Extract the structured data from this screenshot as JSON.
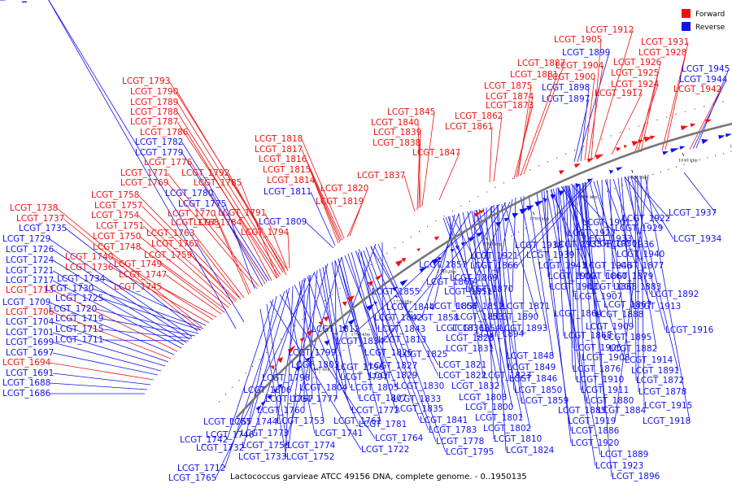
{
  "caption": "Lactococcus garvieae ATCC 49156 DNA, complete genome. - 0..1950135",
  "legend": [
    {
      "label": "Forward",
      "color": "#ee1111"
    },
    {
      "label": "Reverse",
      "color": "#1111ee"
    }
  ],
  "ticks": [
    "1680 kbp",
    "1700 kbp",
    "1720 kbp",
    "1740 kbp",
    "1760 kbp",
    "1780 kbp",
    "1800 kbp",
    "1820 kbp",
    "1840 kbp",
    "1860 kbp",
    "1880 kbp",
    "1900 kbp",
    "1920 kbp",
    "1940 kbp"
  ],
  "labels": [
    {
      "t": "LCGT_1793",
      "s": "f"
    },
    {
      "t": "LCGT_1790",
      "s": "f"
    },
    {
      "t": "LCGT_1789",
      "s": "f"
    },
    {
      "t": "LCGT_1788",
      "s": "f"
    },
    {
      "t": "LCGT_1787",
      "s": "f"
    },
    {
      "t": "LCGT_1786",
      "s": "f"
    },
    {
      "t": "LCGT_1782",
      "s": "r"
    },
    {
      "t": "LCGT_1779",
      "s": "r"
    },
    {
      "t": "LCGT_1776",
      "s": "f"
    },
    {
      "t": "LCGT_1771",
      "s": "f"
    },
    {
      "t": "LCGT_1792",
      "s": "f"
    },
    {
      "t": "LCGT_1769",
      "s": "f"
    },
    {
      "t": "LCGT_1785",
      "s": "f"
    },
    {
      "t": "LCGT_1780",
      "s": "r"
    },
    {
      "t": "LCGT_1758",
      "s": "f"
    },
    {
      "t": "LCGT_1757",
      "s": "f"
    },
    {
      "t": "LCGT_1775",
      "s": "r"
    },
    {
      "t": "LCGT_1754",
      "s": "f"
    },
    {
      "t": "LCGT_1770",
      "s": "f"
    },
    {
      "t": "LCGT_1751",
      "s": "f"
    },
    {
      "t": "LCGT_1768",
      "s": "f"
    },
    {
      "t": "LCGT_1784",
      "s": "f"
    },
    {
      "t": "LCGT_1763",
      "s": "f"
    },
    {
      "t": "LCGT_1791",
      "s": "f"
    },
    {
      "t": "LCGT_1750",
      "s": "f"
    },
    {
      "t": "LCGT_1748",
      "s": "f"
    },
    {
      "t": "LCGT_1762",
      "s": "f"
    },
    {
      "t": "LCGT_1794",
      "s": "f"
    },
    {
      "t": "LCGT_1759",
      "s": "f"
    },
    {
      "t": "LCGT_1749",
      "s": "f"
    },
    {
      "t": "LCGT_1747",
      "s": "f"
    },
    {
      "t": "LCGT_1745",
      "s": "f"
    },
    {
      "t": "LCGT_1738",
      "s": "f"
    },
    {
      "t": "LCGT_1737",
      "s": "f"
    },
    {
      "t": "LCGT_1735",
      "s": "r"
    },
    {
      "t": "LCGT_1729",
      "s": "r"
    },
    {
      "t": "LCGT_1726",
      "s": "r"
    },
    {
      "t": "LCGT_1724",
      "s": "r"
    },
    {
      "t": "LCGT_1721",
      "s": "r"
    },
    {
      "t": "LCGT_1717",
      "s": "r"
    },
    {
      "t": "LCGT_1713",
      "s": "f"
    },
    {
      "t": "LCGT_1709",
      "s": "r"
    },
    {
      "t": "LCGT_1706",
      "s": "f"
    },
    {
      "t": "LCGT_1704",
      "s": "r"
    },
    {
      "t": "LCGT_1701",
      "s": "r"
    },
    {
      "t": "LCGT_1699",
      "s": "r"
    },
    {
      "t": "LCGT_1697",
      "s": "r"
    },
    {
      "t": "LCGT_1694",
      "s": "f"
    },
    {
      "t": "LCGT_1691",
      "s": "r"
    },
    {
      "t": "LCGT_1688",
      "s": "r"
    },
    {
      "t": "LCGT_1686",
      "s": "r"
    },
    {
      "t": "LCGT_1740",
      "s": "f"
    },
    {
      "t": "LCGT_1736",
      "s": "f"
    },
    {
      "t": "LCGT_1734",
      "s": "r"
    },
    {
      "t": "LCGT_1730",
      "s": "r"
    },
    {
      "t": "LCGT_1725",
      "s": "r"
    },
    {
      "t": "LCGT_1720",
      "s": "r"
    },
    {
      "t": "LCGT_1719",
      "s": "r"
    },
    {
      "t": "LCGT_1715",
      "s": "r"
    },
    {
      "t": "LCGT_1711",
      "s": "r"
    },
    {
      "t": "LCGT_1818",
      "s": "f"
    },
    {
      "t": "LCGT_1817",
      "s": "f"
    },
    {
      "t": "LCGT_1816",
      "s": "f"
    },
    {
      "t": "LCGT_1815",
      "s": "f"
    },
    {
      "t": "LCGT_1814",
      "s": "f"
    },
    {
      "t": "LCGT_1811",
      "s": "r"
    },
    {
      "t": "LCGT_1820",
      "s": "f"
    },
    {
      "t": "LCGT_1819",
      "s": "f"
    },
    {
      "t": "LCGT_1809",
      "s": "r"
    },
    {
      "t": "LCGT_1837",
      "s": "f"
    },
    {
      "t": "LCGT_1845",
      "s": "f"
    },
    {
      "t": "LCGT_1840",
      "s": "f"
    },
    {
      "t": "LCGT_1839",
      "s": "f"
    },
    {
      "t": "LCGT_1838",
      "s": "f"
    },
    {
      "t": "LCGT_1847",
      "s": "f"
    },
    {
      "t": "LCGT_1862",
      "s": "f"
    },
    {
      "t": "LCGT_1861",
      "s": "f"
    },
    {
      "t": "LCGT_1887",
      "s": "f"
    },
    {
      "t": "LCGT_1881",
      "s": "f"
    },
    {
      "t": "LCGT_1875",
      "s": "f"
    },
    {
      "t": "LCGT_1874",
      "s": "f"
    },
    {
      "t": "LCGT_1873",
      "s": "f"
    },
    {
      "t": "LCGT_1912",
      "s": "f"
    },
    {
      "t": "LCGT_1905",
      "s": "f"
    },
    {
      "t": "LCGT_1899",
      "s": "r"
    },
    {
      "t": "LCGT_1904",
      "s": "f"
    },
    {
      "t": "LCGT_1900",
      "s": "f"
    },
    {
      "t": "LCGT_1898",
      "s": "r"
    },
    {
      "t": "LCGT_1897",
      "s": "r"
    },
    {
      "t": "LCGT_1917",
      "s": "f"
    },
    {
      "t": "LCGT_1931",
      "s": "f"
    },
    {
      "t": "LCGT_1928",
      "s": "f"
    },
    {
      "t": "LCGT_1926",
      "s": "f"
    },
    {
      "t": "LCGT_1925",
      "s": "f"
    },
    {
      "t": "LCGT_1924",
      "s": "f"
    },
    {
      "t": "LCGT_1945",
      "s": "r"
    },
    {
      "t": "LCGT_1944",
      "s": "r"
    },
    {
      "t": "LCGT_1942",
      "s": "f"
    },
    {
      "t": "LCGT_1901",
      "s": "r"
    },
    {
      "t": "LCGT_1922",
      "s": "r"
    },
    {
      "t": "LCGT_1937",
      "s": "r"
    },
    {
      "t": "LCGT_1927",
      "s": "r"
    },
    {
      "t": "LCGT_1929",
      "s": "r"
    },
    {
      "t": "LCGT_1930",
      "s": "r"
    },
    {
      "t": "LCGT_1933",
      "s": "r"
    },
    {
      "t": "LCGT_1934",
      "s": "r"
    },
    {
      "t": "LCGT_1935",
      "s": "r"
    },
    {
      "t": "LCGT_1936",
      "s": "r"
    },
    {
      "t": "LCGT_1938",
      "s": "r"
    },
    {
      "t": "LCGT_1939",
      "s": "r"
    },
    {
      "t": "LCGT_1940",
      "s": "r"
    },
    {
      "t": "LCGT_1941",
      "s": "r"
    },
    {
      "t": "LCGT_1943",
      "s": "r"
    },
    {
      "t": "LCGT_1877",
      "s": "r"
    },
    {
      "t": "LCGT_1902",
      "s": "r"
    },
    {
      "t": "LCGT_1860",
      "s": "r"
    },
    {
      "t": "LCGT_1879",
      "s": "r"
    },
    {
      "t": "LCGT_1903",
      "s": "r"
    },
    {
      "t": "LCGT_1863",
      "s": "r"
    },
    {
      "t": "LCGT_1883",
      "s": "r"
    },
    {
      "t": "LCGT_1907",
      "s": "r"
    },
    {
      "t": "LCGT_1867",
      "s": "r"
    },
    {
      "t": "LCGT_1892",
      "s": "r"
    },
    {
      "t": "LCGT_1913",
      "s": "r"
    },
    {
      "t": "LCGT_1864",
      "s": "r"
    },
    {
      "t": "LCGT_1888",
      "s": "r"
    },
    {
      "t": "LCGT_1909",
      "s": "r"
    },
    {
      "t": "LCGT_1868",
      "s": "r"
    },
    {
      "t": "LCGT_1895",
      "s": "r"
    },
    {
      "t": "LCGT_1916",
      "s": "r"
    },
    {
      "t": "LCGT_1882",
      "s": "r"
    },
    {
      "t": "LCGT_1906",
      "s": "r"
    },
    {
      "t": "LCGT_1908",
      "s": "r"
    },
    {
      "t": "LCGT_1914",
      "s": "r"
    },
    {
      "t": "LCGT_1876",
      "s": "r"
    },
    {
      "t": "LCGT_1891",
      "s": "r"
    },
    {
      "t": "LCGT_1910",
      "s": "r"
    },
    {
      "t": "LCGT_1872",
      "s": "r"
    },
    {
      "t": "LCGT_1911",
      "s": "r"
    },
    {
      "t": "LCGT_1878",
      "s": "r"
    },
    {
      "t": "LCGT_1880",
      "s": "r"
    },
    {
      "t": "LCGT_1915",
      "s": "r"
    },
    {
      "t": "LCGT_1884",
      "s": "r"
    },
    {
      "t": "LCGT_1918",
      "s": "r"
    },
    {
      "t": "LCGT_1885",
      "s": "r"
    },
    {
      "t": "LCGT_1919",
      "s": "r"
    },
    {
      "t": "LCGT_1886",
      "s": "r"
    },
    {
      "t": "LCGT_1920",
      "s": "r"
    },
    {
      "t": "LCGT_1889",
      "s": "r"
    },
    {
      "t": "LCGT_1923",
      "s": "r"
    },
    {
      "t": "LCGT_1896",
      "s": "r"
    },
    {
      "t": "LCGT_1921",
      "s": "r"
    },
    {
      "t": "LCGT_1866",
      "s": "r"
    },
    {
      "t": "LCGT_1869",
      "s": "r"
    },
    {
      "t": "LCGT_1870",
      "s": "r"
    },
    {
      "t": "LCGT_1871",
      "s": "r"
    },
    {
      "t": "LCGT_1890",
      "s": "r"
    },
    {
      "t": "LCGT_1893",
      "s": "r"
    },
    {
      "t": "LCGT_1894",
      "s": "r"
    },
    {
      "t": "LCGT_1848",
      "s": "r"
    },
    {
      "t": "LCGT_1849",
      "s": "r"
    },
    {
      "t": "LCGT_1846",
      "s": "r"
    },
    {
      "t": "LCGT_1850",
      "s": "r"
    },
    {
      "t": "LCGT_1859",
      "s": "r"
    },
    {
      "t": "LCGT_1857",
      "s": "r"
    },
    {
      "t": "LCGT_1865",
      "s": "r"
    },
    {
      "t": "LCGT_1851",
      "s": "r"
    },
    {
      "t": "LCGT_1852",
      "s": "r"
    },
    {
      "t": "LCGT_1853",
      "s": "r"
    },
    {
      "t": "LCGT_1854",
      "s": "r"
    },
    {
      "t": "LCGT_1855",
      "s": "r"
    },
    {
      "t": "LCGT_1856",
      "s": "r"
    },
    {
      "t": "LCGT_1858",
      "s": "r"
    },
    {
      "t": "LCGT_1836",
      "s": "r"
    },
    {
      "t": "LCGT_1828",
      "s": "r"
    },
    {
      "t": "LCGT_1831",
      "s": "r"
    },
    {
      "t": "LCGT_1844",
      "s": "r"
    },
    {
      "t": "LCGT_1842",
      "s": "r"
    },
    {
      "t": "LCGT_1843",
      "s": "r"
    },
    {
      "t": "LCGT_1813",
      "s": "r"
    },
    {
      "t": "LCGT_1825",
      "s": "r"
    },
    {
      "t": "LCGT_1821",
      "s": "r"
    },
    {
      "t": "LCGT_1822",
      "s": "r"
    },
    {
      "t": "LCGT_1823",
      "s": "r"
    },
    {
      "t": "LCGT_1832",
      "s": "r"
    },
    {
      "t": "LCGT_1808",
      "s": "r"
    },
    {
      "t": "LCGT_1800",
      "s": "r"
    },
    {
      "t": "LCGT_1801",
      "s": "r"
    },
    {
      "t": "LCGT_1802",
      "s": "r"
    },
    {
      "t": "LCGT_1810",
      "s": "r"
    },
    {
      "t": "LCGT_1824",
      "s": "r"
    },
    {
      "t": "LCGT_1812",
      "s": "r"
    },
    {
      "t": "LCGT_1834",
      "s": "r"
    },
    {
      "t": "LCGT_1826",
      "s": "r"
    },
    {
      "t": "LCGT_1827",
      "s": "r"
    },
    {
      "t": "LCGT_1829",
      "s": "r"
    },
    {
      "t": "LCGT_1830",
      "s": "r"
    },
    {
      "t": "LCGT_1833",
      "s": "r"
    },
    {
      "t": "LCGT_1835",
      "s": "r"
    },
    {
      "t": "LCGT_1841",
      "s": "r"
    },
    {
      "t": "LCGT_1783",
      "s": "r"
    },
    {
      "t": "LCGT_1778",
      "s": "r"
    },
    {
      "t": "LCGT_1795",
      "s": "r"
    },
    {
      "t": "LCGT_1799",
      "s": "r"
    },
    {
      "t": "LCGT_1796",
      "s": "r"
    },
    {
      "t": "LCGT_1803",
      "s": "r"
    },
    {
      "t": "LCGT_1797",
      "s": "r"
    },
    {
      "t": "LCGT_1798",
      "s": "r"
    },
    {
      "t": "LCGT_1804",
      "s": "r"
    },
    {
      "t": "LCGT_1805",
      "s": "r"
    },
    {
      "t": "LCGT_1806",
      "s": "r"
    },
    {
      "t": "LCGT_1807",
      "s": "r"
    },
    {
      "t": "LCGT_1767",
      "s": "r"
    },
    {
      "t": "LCGT_1777",
      "s": "r"
    },
    {
      "t": "LCGT_1760",
      "s": "r"
    },
    {
      "t": "LCGT_1772",
      "s": "r"
    },
    {
      "t": "LCGT_1753",
      "s": "r"
    },
    {
      "t": "LCGT_1761",
      "s": "r"
    },
    {
      "t": "LCGT_1781",
      "s": "r"
    },
    {
      "t": "LCGT_1744",
      "s": "r"
    },
    {
      "t": "LCGT_1773",
      "s": "r"
    },
    {
      "t": "LCGT_1741",
      "s": "r"
    },
    {
      "t": "LCGT_1755",
      "s": "r"
    },
    {
      "t": "LCGT_1746",
      "s": "r"
    },
    {
      "t": "LCGT_1764",
      "s": "r"
    },
    {
      "t": "LCGT_1742",
      "s": "r"
    },
    {
      "t": "LCGT_1756",
      "s": "r"
    },
    {
      "t": "LCGT_1774",
      "s": "r"
    },
    {
      "t": "LCGT_1732",
      "s": "r"
    },
    {
      "t": "LCGT_1733",
      "s": "r"
    },
    {
      "t": "LCGT_1752",
      "s": "r"
    },
    {
      "t": "LCGT_1722",
      "s": "r"
    },
    {
      "t": "LCGT_1712",
      "s": "r"
    },
    {
      "t": "LCGT_1765",
      "s": "r"
    },
    {
      "t": "LCGT_1700",
      "s": "r"
    },
    {
      "t": "LCGT_1723",
      "s": "r"
    },
    {
      "t": "LCGT_1743",
      "s": "r"
    },
    {
      "t": "LCGT_1705",
      "s": "r"
    },
    {
      "t": "LCGT_1716",
      "s": "r"
    },
    {
      "t": "LCGT_1739",
      "s": "r"
    },
    {
      "t": "LCGT_1766",
      "s": "r"
    },
    {
      "t": "LCGT_1695",
      "s": "r"
    },
    {
      "t": "LCGT_1689",
      "s": "r"
    }
  ]
}
